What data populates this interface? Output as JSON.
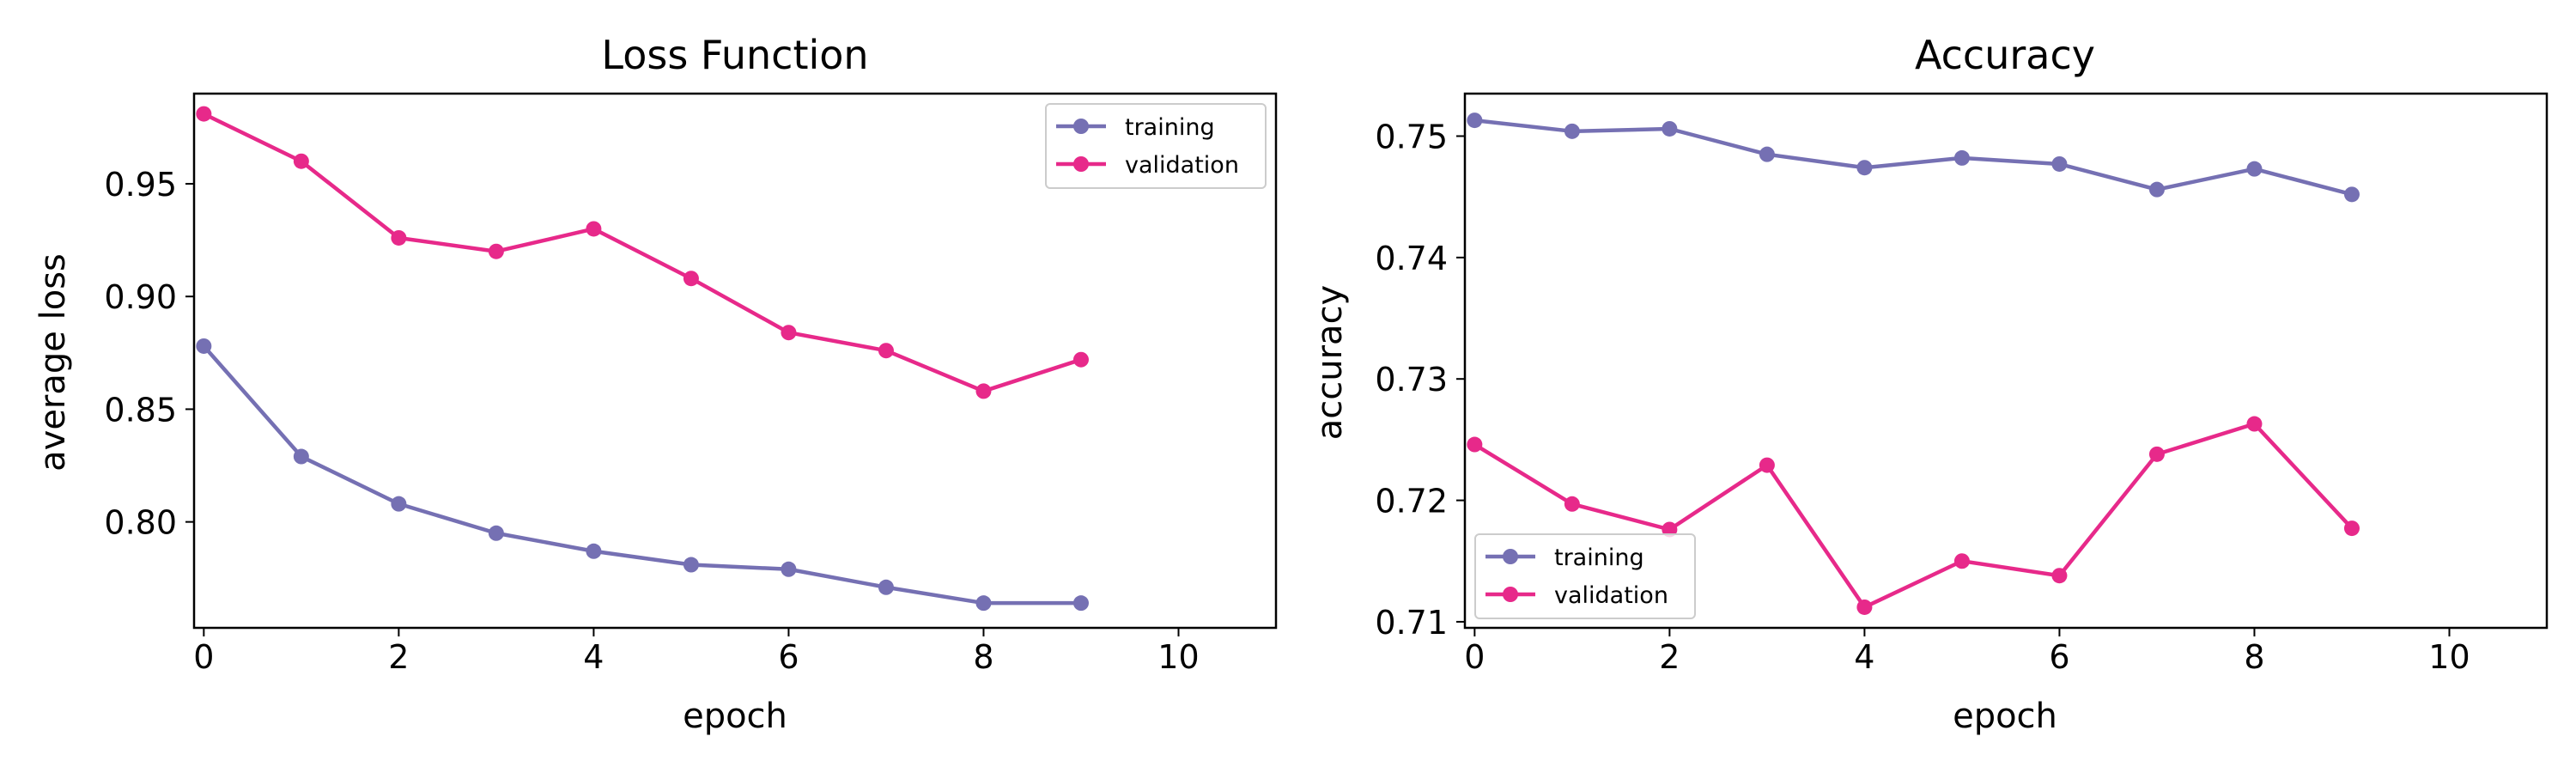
{
  "colors": {
    "training": "#7570b3",
    "validation": "#e7298a"
  },
  "chart_data": [
    {
      "type": "line",
      "title": "Loss Function",
      "xlabel": "epoch",
      "ylabel": "average loss",
      "xlim": [
        -0.1,
        11
      ],
      "ylim": [
        0.753,
        0.99
      ],
      "xticks": [
        0,
        2,
        4,
        6,
        8,
        10
      ],
      "xtick_labels": [
        "0",
        "2",
        "4",
        "6",
        "8",
        "10"
      ],
      "yticks": [
        0.8,
        0.85,
        0.9,
        0.95
      ],
      "ytick_labels": [
        "0.80",
        "0.85",
        "0.90",
        "0.95"
      ],
      "legend_position": "top-right",
      "grid": false,
      "x": [
        0,
        1,
        2,
        3,
        4,
        5,
        6,
        7,
        8,
        9
      ],
      "series": [
        {
          "name": "training",
          "color": "#7570b3",
          "values": [
            0.878,
            0.829,
            0.808,
            0.795,
            0.787,
            0.781,
            0.779,
            0.771,
            0.764,
            0.764
          ]
        },
        {
          "name": "validation",
          "color": "#e7298a",
          "values": [
            0.981,
            0.96,
            0.926,
            0.92,
            0.93,
            0.908,
            0.884,
            0.876,
            0.858,
            0.872
          ]
        }
      ]
    },
    {
      "type": "line",
      "title": "Accuracy",
      "xlabel": "epoch",
      "ylabel": "accuracy",
      "xlim": [
        -0.1,
        11
      ],
      "ylim": [
        0.7095,
        0.7535
      ],
      "xticks": [
        0,
        2,
        4,
        6,
        8,
        10
      ],
      "xtick_labels": [
        "0",
        "2",
        "4",
        "6",
        "8",
        "10"
      ],
      "yticks": [
        0.71,
        0.72,
        0.73,
        0.74,
        0.75
      ],
      "ytick_labels": [
        "0.71",
        "0.72",
        "0.73",
        "0.74",
        "0.75"
      ],
      "legend_position": "bottom-left",
      "grid": false,
      "x": [
        0,
        1,
        2,
        3,
        4,
        5,
        6,
        7,
        8,
        9
      ],
      "series": [
        {
          "name": "training",
          "color": "#7570b3",
          "values": [
            0.7513,
            0.7504,
            0.7506,
            0.7485,
            0.7474,
            0.7482,
            0.7477,
            0.7456,
            0.7473,
            0.7452
          ]
        },
        {
          "name": "validation",
          "color": "#e7298a",
          "values": [
            0.7246,
            0.7197,
            0.7176,
            0.7229,
            0.7112,
            0.715,
            0.7138,
            0.7238,
            0.7263,
            0.7177
          ]
        }
      ]
    }
  ]
}
